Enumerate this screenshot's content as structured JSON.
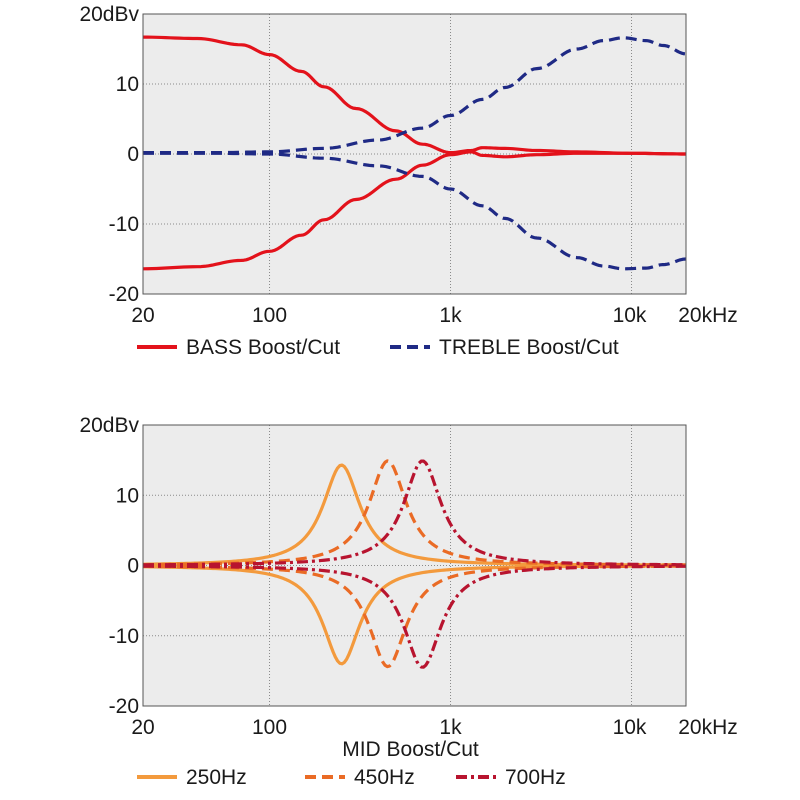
{
  "chart_data": [
    {
      "type": "line",
      "x_scale": "log",
      "xlim": [
        20,
        20000
      ],
      "ylim": [
        -20,
        20
      ],
      "grid": true,
      "legend_position": "bottom",
      "y_ticks": [
        {
          "value": 20,
          "label": "20dBv"
        },
        {
          "value": 10,
          "label": "10"
        },
        {
          "value": 0,
          "label": "0"
        },
        {
          "value": -10,
          "label": "-10"
        },
        {
          "value": -20,
          "label": "-20"
        }
      ],
      "x_ticks": [
        {
          "value": 20,
          "label": "20"
        },
        {
          "value": 100,
          "label": "100"
        },
        {
          "value": 1000,
          "label": "1k"
        },
        {
          "value": 10000,
          "label": "10k"
        },
        {
          "value": 20000,
          "label": "20kHz"
        }
      ],
      "grid_x": [
        100,
        1000,
        10000
      ],
      "grid_y": [
        10,
        0,
        -10
      ],
      "xlabel": "",
      "legend": [
        {
          "label": "BASS Boost/Cut",
          "color": "#e3121b",
          "dash": "solid"
        },
        {
          "label": "TREBLE Boost/Cut",
          "color": "#1f2a85",
          "dash": "dashed"
        }
      ],
      "series": [
        {
          "name": "BASS Boost/Cut",
          "color": "#e3121b",
          "dash": "solid",
          "points": [
            [
              20,
              16.7
            ],
            [
              40,
              16.5
            ],
            [
              70,
              15.6
            ],
            [
              100,
              14.2
            ],
            [
              150,
              11.8
            ],
            [
              200,
              9.6
            ],
            [
              300,
              6.5
            ],
            [
              500,
              3.3
            ],
            [
              700,
              1.4
            ],
            [
              1000,
              0.2
            ],
            [
              1300,
              0.5
            ],
            [
              1500,
              0.9
            ],
            [
              2000,
              0.8
            ],
            [
              3000,
              0.5
            ],
            [
              5000,
              0.3
            ],
            [
              10000,
              0.1
            ],
            [
              20000,
              0.0
            ]
          ]
        },
        {
          "name": "BASS Boost/Cut",
          "color": "#e3121b",
          "dash": "solid",
          "points": [
            [
              20,
              -16.4
            ],
            [
              40,
              -16.1
            ],
            [
              70,
              -15.2
            ],
            [
              100,
              -13.9
            ],
            [
              150,
              -11.6
            ],
            [
              200,
              -9.4
            ],
            [
              300,
              -6.5
            ],
            [
              500,
              -3.6
            ],
            [
              700,
              -1.6
            ],
            [
              1000,
              -0.1
            ],
            [
              1300,
              0.3
            ],
            [
              1500,
              -0.2
            ],
            [
              2000,
              -0.4
            ],
            [
              3000,
              -0.1
            ],
            [
              5000,
              0.1
            ],
            [
              10000,
              0.1
            ],
            [
              20000,
              0.0
            ]
          ]
        },
        {
          "name": "TREBLE Boost/Cut",
          "color": "#1f2a85",
          "dash": "dashed",
          "points": [
            [
              20,
              0.2
            ],
            [
              50,
              0.2
            ],
            [
              100,
              0.3
            ],
            [
              200,
              0.8
            ],
            [
              400,
              2.0
            ],
            [
              700,
              3.7
            ],
            [
              1000,
              5.5
            ],
            [
              1500,
              7.8
            ],
            [
              2000,
              9.5
            ],
            [
              3000,
              12.2
            ],
            [
              5000,
              15.0
            ],
            [
              7000,
              16.2
            ],
            [
              9000,
              16.6
            ],
            [
              12000,
              16.2
            ],
            [
              15000,
              15.5
            ],
            [
              20000,
              14.3
            ]
          ]
        },
        {
          "name": "TREBLE Boost/Cut",
          "color": "#1f2a85",
          "dash": "dashed",
          "points": [
            [
              20,
              0.1
            ],
            [
              50,
              0.1
            ],
            [
              100,
              0.0
            ],
            [
              200,
              -0.6
            ],
            [
              400,
              -1.7
            ],
            [
              700,
              -3.2
            ],
            [
              1000,
              -5.0
            ],
            [
              1500,
              -7.4
            ],
            [
              2000,
              -9.2
            ],
            [
              3000,
              -12.0
            ],
            [
              5000,
              -14.8
            ],
            [
              7000,
              -16.0
            ],
            [
              9000,
              -16.4
            ],
            [
              12000,
              -16.3
            ],
            [
              15000,
              -15.8
            ],
            [
              20000,
              -15.0
            ]
          ]
        }
      ]
    },
    {
      "type": "line",
      "x_scale": "log",
      "xlim": [
        20,
        20000
      ],
      "ylim": [
        -20,
        20
      ],
      "grid": true,
      "legend_position": "bottom",
      "y_ticks": [
        {
          "value": 20,
          "label": "20dBv"
        },
        {
          "value": 10,
          "label": "10"
        },
        {
          "value": 0,
          "label": "0"
        },
        {
          "value": -10,
          "label": "-10"
        },
        {
          "value": -20,
          "label": "-20"
        }
      ],
      "x_ticks": [
        {
          "value": 20,
          "label": "20"
        },
        {
          "value": 100,
          "label": "100"
        },
        {
          "value": 1000,
          "label": "1k"
        },
        {
          "value": 10000,
          "label": "10k"
        },
        {
          "value": 20000,
          "label": "20kHz"
        }
      ],
      "grid_x": [
        100,
        1000,
        10000
      ],
      "grid_y": [
        10,
        0,
        -10
      ],
      "xlabel": "MID Boost/Cut",
      "legend": [
        {
          "label": "250Hz",
          "color": "#f39a3d",
          "dash": "solid"
        },
        {
          "label": "450Hz",
          "color": "#ea6b25",
          "dash": "dashed"
        },
        {
          "label": "700Hz",
          "color": "#b8142f",
          "dash": "dashdot"
        }
      ],
      "series": [
        {
          "name": "250Hz",
          "color": "#f39a3d",
          "dash": "solid",
          "center_hz": 250,
          "peak_db": 14.3,
          "q": 1.9
        },
        {
          "name": "250Hz",
          "color": "#f39a3d",
          "dash": "solid",
          "center_hz": 250,
          "peak_db": -14.0,
          "q": 1.9
        },
        {
          "name": "450Hz",
          "color": "#ea6b25",
          "dash": "dashed",
          "center_hz": 450,
          "peak_db": 14.9,
          "q": 1.9
        },
        {
          "name": "450Hz",
          "color": "#ea6b25",
          "dash": "dashed",
          "center_hz": 450,
          "peak_db": -14.4,
          "q": 1.9
        },
        {
          "name": "700Hz",
          "color": "#b8142f",
          "dash": "dashdot",
          "center_hz": 700,
          "peak_db": 14.9,
          "q": 1.9
        },
        {
          "name": "700Hz",
          "color": "#b8142f",
          "dash": "dashdot",
          "center_hz": 700,
          "peak_db": -14.5,
          "q": 1.9
        }
      ]
    }
  ]
}
